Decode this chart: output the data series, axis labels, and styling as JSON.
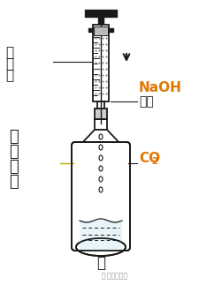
{
  "bg_color": "#ffffff",
  "line_color": "#1a1a1a",
  "naoh_color": "#e07800",
  "co2_color": "#e07800",
  "label_naoh": "NaOH",
  "label_solution": "溶液",
  "label_syringe": "注射器",
  "label_bottle": [
    "软",
    "塑",
    "料",
    "瓶"
  ],
  "label_co2_main": "CO",
  "label_co2_sub": "2",
  "label_caption": "甲",
  "label_watermark": "号·文学与化学",
  "figsize": [
    2.25,
    3.23
  ],
  "dpi": 100
}
